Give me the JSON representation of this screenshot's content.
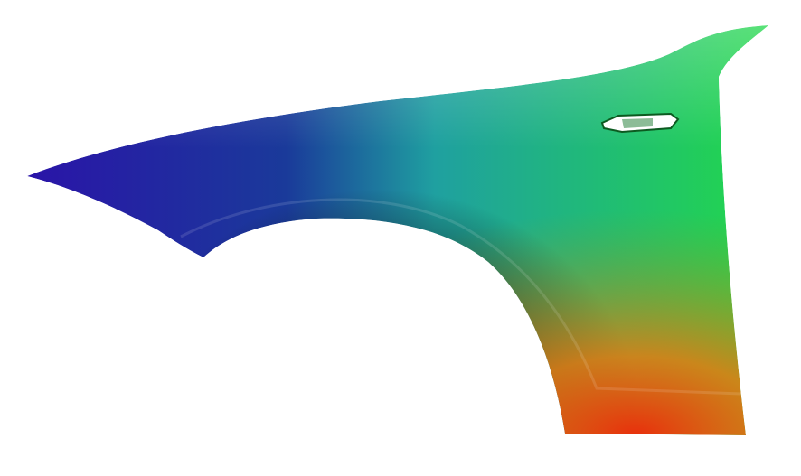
{
  "scene": {
    "subject": "car-fender",
    "background_color": "#ffffff",
    "colors": {
      "front_blue": "#2a14a8",
      "top_teal": "#1fa0a0",
      "rear_green": "#22d84a",
      "bottom_red": "#e8300c",
      "bottom_orange": "#e87a10",
      "arch_shadow": "#101818"
    }
  }
}
